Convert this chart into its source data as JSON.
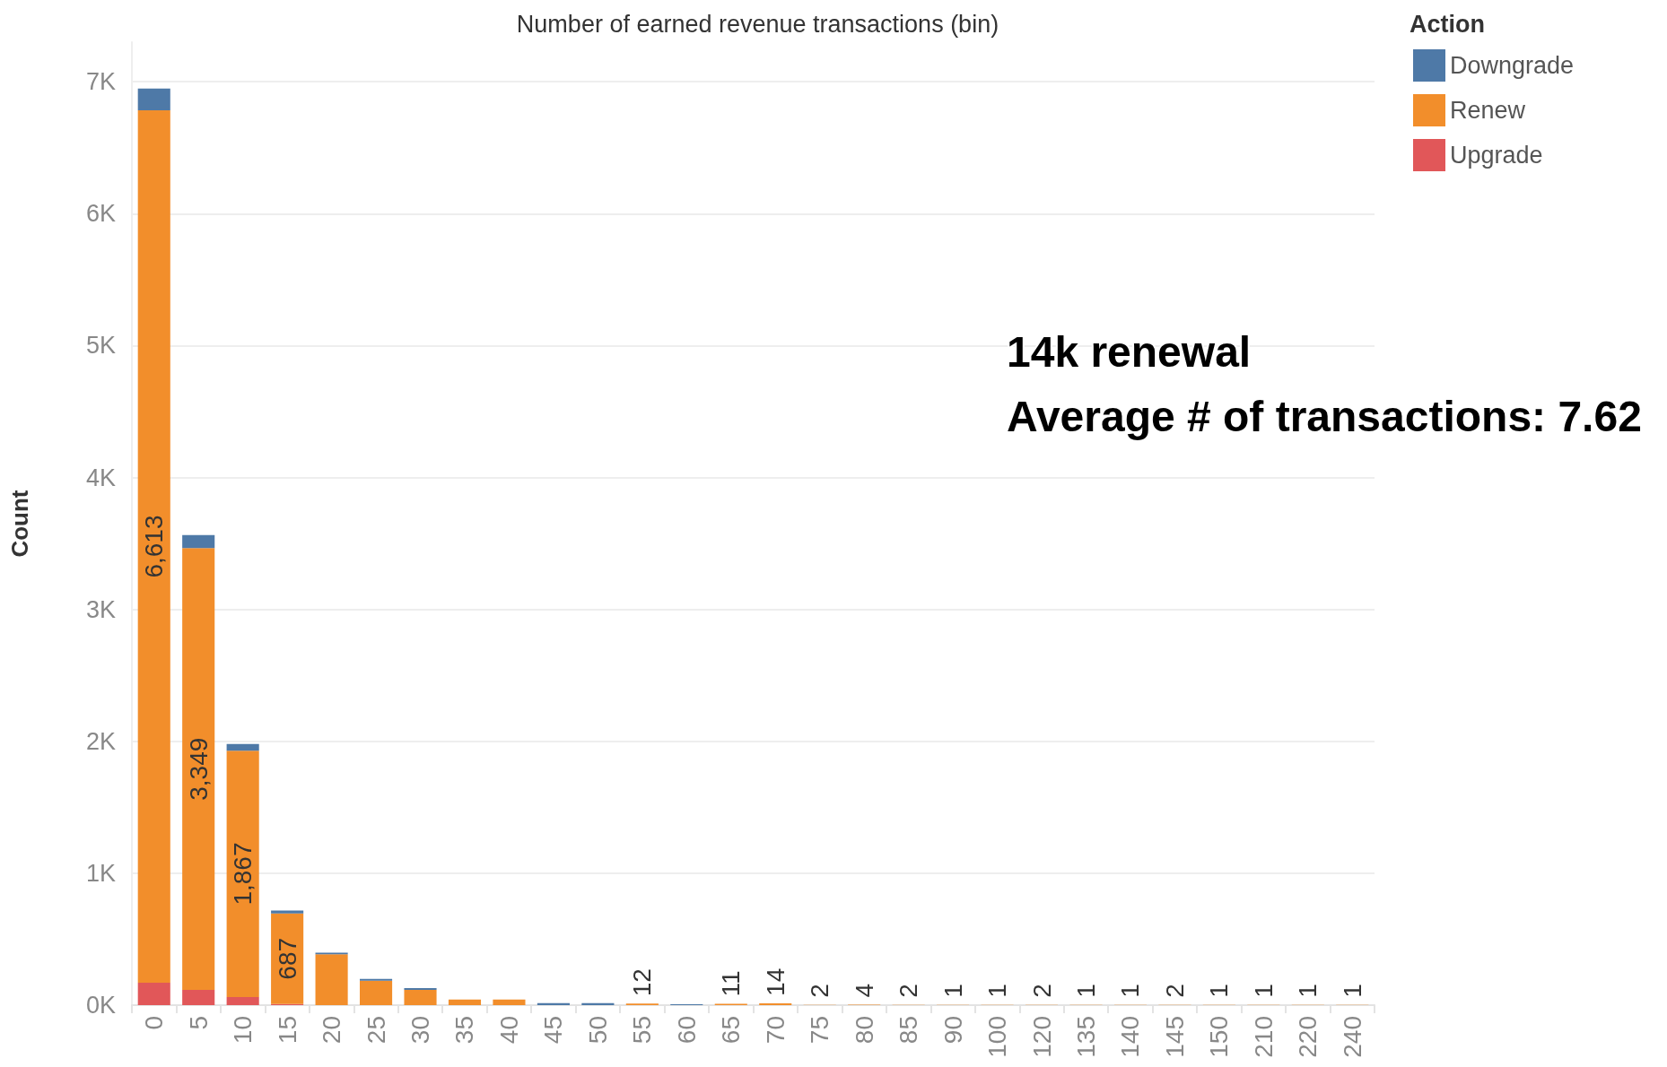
{
  "chart_data": {
    "type": "bar",
    "xlabel": "Number of earned revenue transactions (bin)",
    "ylabel": "Count",
    "legend_title": "Action",
    "annotations": [
      "14k renewal",
      "Average # of transactions: 7.62"
    ],
    "categories": [
      "0",
      "5",
      "10",
      "15",
      "20",
      "25",
      "30",
      "35",
      "40",
      "45",
      "50",
      "55",
      "60",
      "65",
      "70",
      "75",
      "80",
      "85",
      "90",
      "100",
      "120",
      "135",
      "140",
      "145",
      "150",
      "210",
      "220",
      "240"
    ],
    "series": [
      {
        "name": "Upgrade",
        "color": "#e15759",
        "values": [
          170,
          115,
          62,
          8,
          null,
          null,
          null,
          null,
          null,
          null,
          null,
          null,
          null,
          null,
          null,
          null,
          null,
          null,
          null,
          null,
          null,
          null,
          null,
          null,
          null,
          null,
          null,
          null
        ]
      },
      {
        "name": "Renew",
        "color": "#f28e2b",
        "values": [
          6613,
          3349,
          1867,
          687,
          385,
          186,
          116,
          42,
          42,
          null,
          null,
          12,
          null,
          11,
          14,
          2,
          4,
          2,
          1,
          1,
          2,
          1,
          1,
          2,
          1,
          1,
          1,
          1
        ],
        "value_labels": [
          "6,613",
          "3,349",
          "1,867",
          "687",
          null,
          null,
          null,
          null,
          null,
          null,
          null,
          "12",
          null,
          "11",
          "14",
          "2",
          "4",
          "2",
          "1",
          "1",
          "2",
          "1",
          "1",
          "2",
          "1",
          "1",
          "1",
          "1"
        ]
      },
      {
        "name": "Downgrade",
        "color": "#4e79a7",
        "values": [
          165,
          100,
          50,
          22,
          13,
          13,
          13,
          null,
          null,
          16,
          16,
          null,
          6,
          null,
          null,
          null,
          null,
          null,
          null,
          null,
          null,
          null,
          null,
          null,
          null,
          null,
          null,
          null
        ]
      }
    ],
    "stacked": true,
    "ylim": [
      0,
      7300
    ],
    "yticks": [
      {
        "value": 0,
        "label": "0K"
      },
      {
        "value": 1000,
        "label": "1K"
      },
      {
        "value": 2000,
        "label": "2K"
      },
      {
        "value": 3000,
        "label": "3K"
      },
      {
        "value": 4000,
        "label": "4K"
      },
      {
        "value": 5000,
        "label": "5K"
      },
      {
        "value": 6000,
        "label": "6K"
      },
      {
        "value": 7000,
        "label": "7K"
      }
    ],
    "grid": "y",
    "legend": "top right"
  }
}
